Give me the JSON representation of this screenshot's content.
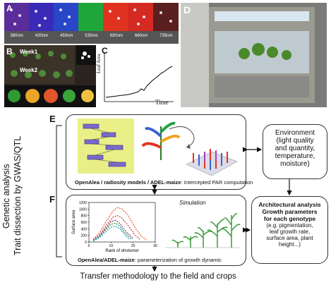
{
  "colors": {
    "box_border": "#333333",
    "dashed_curve_1": "#e05a2a",
    "dashed_curve_2": "#c63b3b",
    "dashed_curve_3": "#7a2e7a",
    "dashed_curve_4": "#2e7d32",
    "dashed_curve_5": "#00a0c8"
  },
  "panels": {
    "A": {
      "label": "A",
      "wavelengths": [
        "380nm",
        "420nm",
        "450nm",
        "530nm",
        "630nm",
        "660nm",
        "735nm"
      ]
    },
    "B": {
      "label": "B",
      "week1": "Week1",
      "week2": "Week2"
    },
    "C": {
      "label": "C",
      "ylabel": "Leaf Area",
      "xlabel": "Time"
    },
    "D": {
      "label": "D"
    },
    "E": {
      "label": "E",
      "caption_bold": "OpenAlea / radiosity models / ADEL-maize",
      "caption_rest": ": Intercepted PAR computation"
    },
    "F": {
      "label": "F",
      "caption_bold": "OpenAlea/ADEL-maize",
      "caption_rest": ": parameterization  of growth dynamic",
      "simulation_label": "Simulation"
    }
  },
  "environment": {
    "title": "Environment",
    "lines": [
      "(light quality",
      "and quantity,",
      "temperature,",
      "moisture)"
    ]
  },
  "architecture": {
    "title_lines": [
      "Architectural analysis",
      "Growth parameters",
      "for each genotype"
    ],
    "lines": [
      "(e.g. pigmentation,",
      "leaf growth rate,",
      "surface area, plant",
      "height...)"
    ]
  },
  "side": {
    "line1": "Genetic analysis",
    "line2": "Trait dissection by GWAS/QTL"
  },
  "bottom": {
    "text": "Transfer methodology to the field and crops"
  },
  "chart_data": {
    "type": "line",
    "xlabel": "Rank of phytomer",
    "ylabel": "Surface area",
    "xlim": [
      0,
      30
    ],
    "ylim": [
      0,
      1200
    ],
    "xticks": [
      "0",
      "10",
      "20",
      "30"
    ],
    "yticks": [
      "0",
      "200",
      "400",
      "600",
      "800",
      "1000",
      "1200"
    ],
    "series": [
      {
        "color": "#e05a2a",
        "points": [
          [
            2,
            80
          ],
          [
            5,
            300
          ],
          [
            8,
            650
          ],
          [
            11,
            950
          ],
          [
            13,
            1050
          ],
          [
            15,
            1000
          ],
          [
            18,
            780
          ],
          [
            21,
            420
          ],
          [
            24,
            160
          ],
          [
            26,
            60
          ]
        ]
      },
      {
        "color": "#c63b3b",
        "points": [
          [
            2,
            60
          ],
          [
            5,
            230
          ],
          [
            8,
            520
          ],
          [
            11,
            760
          ],
          [
            13,
            800
          ],
          [
            15,
            720
          ],
          [
            18,
            480
          ],
          [
            21,
            200
          ],
          [
            23,
            80
          ]
        ]
      },
      {
        "color": "#7a2e7a",
        "points": [
          [
            2,
            50
          ],
          [
            5,
            200
          ],
          [
            8,
            450
          ],
          [
            10,
            620
          ],
          [
            12,
            660
          ],
          [
            14,
            560
          ],
          [
            17,
            300
          ],
          [
            20,
            100
          ]
        ]
      },
      {
        "color": "#2e7d32",
        "points": [
          [
            2,
            40
          ],
          [
            5,
            180
          ],
          [
            8,
            400
          ],
          [
            10,
            540
          ],
          [
            12,
            570
          ],
          [
            14,
            480
          ],
          [
            16,
            300
          ],
          [
            19,
            100
          ]
        ]
      },
      {
        "color": "#00a0c8",
        "points": [
          [
            2,
            30
          ],
          [
            5,
            150
          ],
          [
            8,
            330
          ],
          [
            10,
            450
          ],
          [
            12,
            480
          ],
          [
            14,
            400
          ],
          [
            16,
            250
          ],
          [
            18,
            90
          ]
        ]
      }
    ]
  }
}
